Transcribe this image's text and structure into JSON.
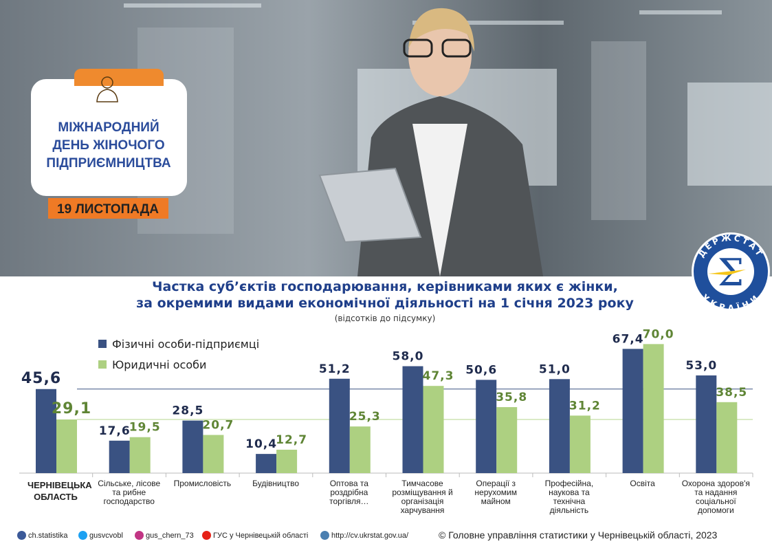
{
  "header": {
    "badge_title": [
      "МІЖНАРОДНИЙ",
      "ДЕНЬ ЖІНОЧОГО",
      "ПІДПРИЄМНИЦТВА"
    ],
    "date": "19 ЛИСТОПАДА",
    "logo": [
      "ДЕРЖСТАТ",
      "УКРАЇНИ"
    ]
  },
  "chart_data": {
    "type": "bar",
    "title": [
      "Частка суб’єктів господарювання, керівниками яких є жінки,",
      "за окремими видами економічної діяльності на 1 січня 2023 року"
    ],
    "subtitle": "(відсотків до підсумку)",
    "categories": [
      "ЧЕРНІВЕЦЬКА ОБЛАСТЬ",
      "Сільське, лісове та рибне господарство",
      "Промисловість",
      "Будівництво",
      "Оптова та роздрібна торгівля…",
      "Тимчасове розміщування й організація харчування",
      "Операції з нерухомим майном",
      "Професійна, наукова та технічна діяльність",
      "Освіта",
      "Охорона здоров'я та надання соціальної допомоги"
    ],
    "series": [
      {
        "name": "Фізичні особи-підприємці",
        "color": "#3a5282",
        "label_color": "#1f2b4d",
        "values": [
          45.6,
          17.6,
          28.5,
          10.4,
          51.2,
          58.0,
          50.6,
          51.0,
          67.4,
          53.0
        ],
        "value_labels": [
          "45,6",
          "17,6",
          "28,5",
          "10,4",
          "51,2",
          "58,0",
          "50,6",
          "51,0",
          "67,4",
          "53,0"
        ]
      },
      {
        "name": "Юридичні особи",
        "color": "#add081",
        "label_color": "#5f8535",
        "values": [
          29.1,
          19.5,
          20.7,
          12.7,
          25.3,
          47.3,
          35.8,
          31.2,
          70.0,
          38.5
        ],
        "value_labels": [
          "29,1",
          "19,5",
          "20,7",
          "12,7",
          "25,3",
          "47,3",
          "35,8",
          "31,2",
          "70,0",
          "38,5"
        ]
      }
    ],
    "ylim": [
      0,
      72
    ]
  },
  "footer": {
    "links": [
      "ch.statistika",
      "gusvcvobl",
      "gus_chern_73",
      "ГУС у Чернівецькій області",
      "http://cv.ukrstat.gov.ua/"
    ],
    "copyright": "© Головне управління статистики у Чернівецькій області, 2023"
  }
}
